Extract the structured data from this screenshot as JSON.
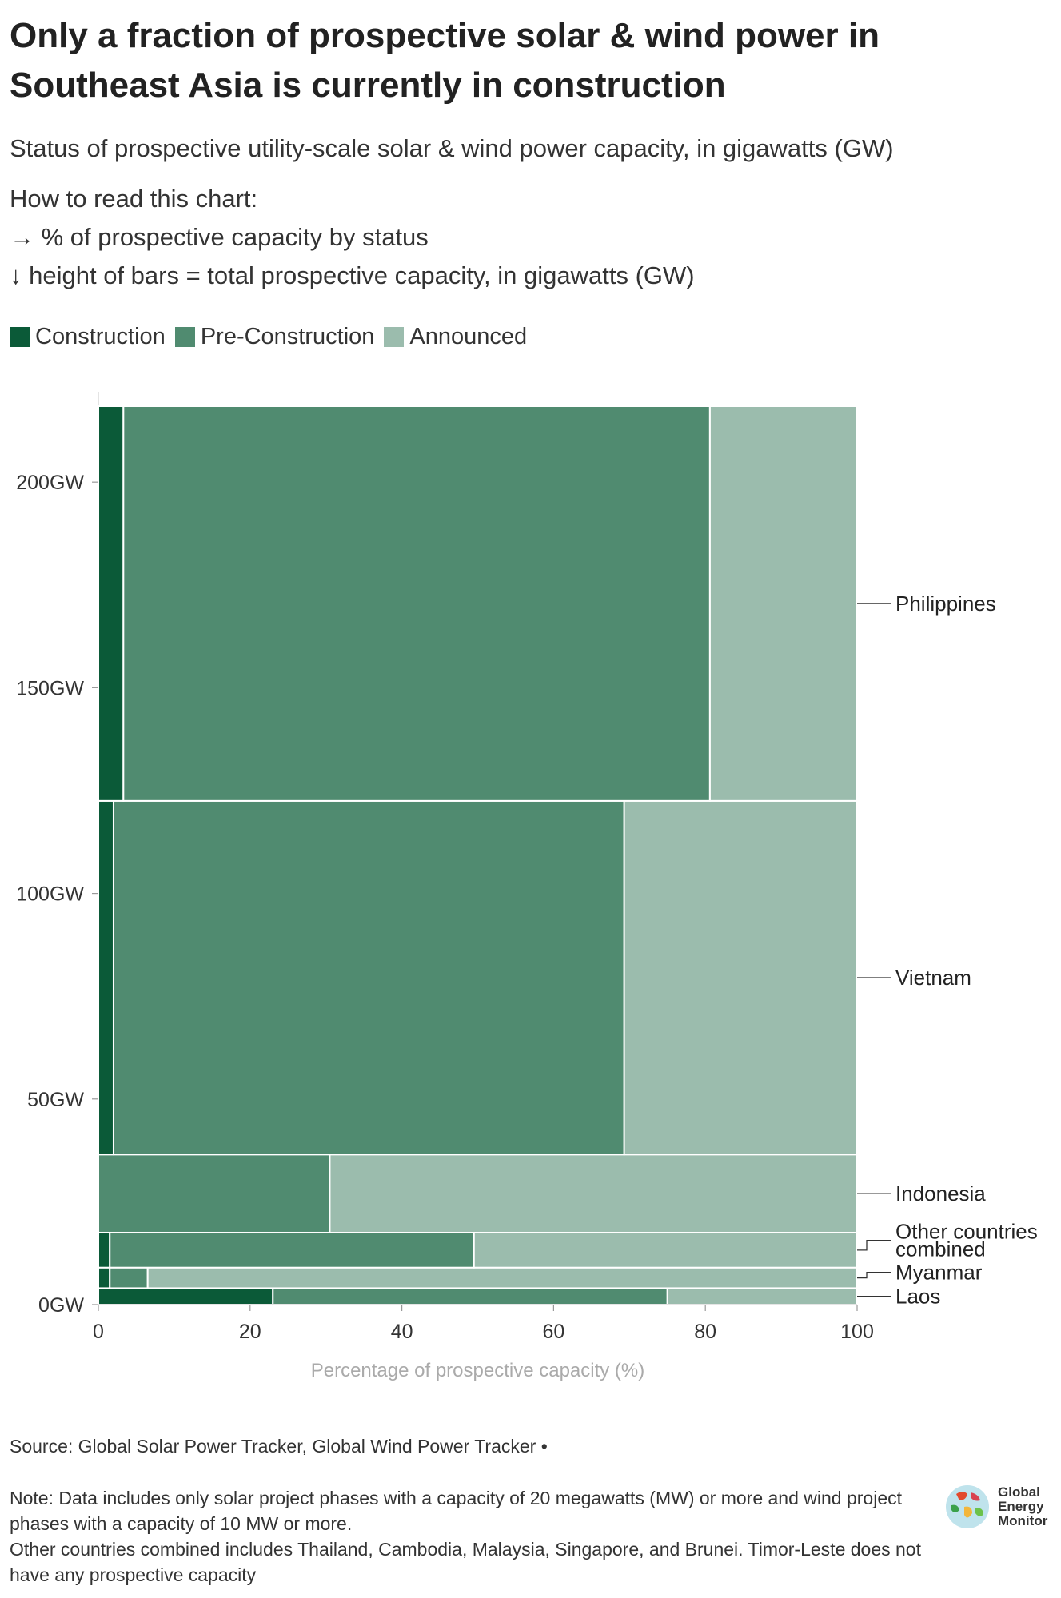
{
  "header": {
    "title": "Only a fraction of prospective solar & wind power in Southeast Asia is currently in construction",
    "subtitle": "Status of prospective utility-scale solar & wind power capacity, in gigawatts (GW)",
    "howto_heading": "How to read this chart:",
    "howto_line1": "→ % of prospective capacity by status",
    "howto_line2": "↓ height of bars = total prospective capacity, in gigawatts (GW)"
  },
  "legend": {
    "construction": "Construction",
    "preconstruction": "Pre-Construction",
    "announced": "Announced"
  },
  "colors": {
    "construction": "#0b5a38",
    "preconstruction": "#508b70",
    "announced": "#9bbcad"
  },
  "chart_data": {
    "type": "bar",
    "subtype": "stacked-percentage-mekko",
    "xlabel": "Percentage of prospective capacity (%)",
    "ylabel": "",
    "xlim": [
      0,
      100
    ],
    "ylim": [
      0,
      222
    ],
    "x_ticks": [
      "0",
      "20",
      "40",
      "60",
      "80",
      "100"
    ],
    "y_ticks": [
      {
        "value": 0,
        "label": "0GW"
      },
      {
        "value": 50,
        "label": "50GW"
      },
      {
        "value": 100,
        "label": "100GW"
      },
      {
        "value": 150,
        "label": "150GW"
      },
      {
        "value": 200,
        "label": "200GW"
      }
    ],
    "series_names": [
      "Construction",
      "Pre-Construction",
      "Announced"
    ],
    "countries": [
      {
        "name": "Laos",
        "capacity_gw": 4,
        "pct": {
          "construction": 23,
          "preconstruction": 52,
          "announced": 25
        }
      },
      {
        "name": "Myanmar",
        "capacity_gw": 5,
        "pct": {
          "construction": 1.5,
          "preconstruction": 5,
          "announced": 93.5
        }
      },
      {
        "name": "Other countries combined",
        "capacity_gw": 8.5,
        "pct": {
          "construction": 1.5,
          "preconstruction": 48,
          "announced": 50.5
        }
      },
      {
        "name": "Indonesia",
        "capacity_gw": 19,
        "pct": {
          "construction": 0,
          "preconstruction": 30.5,
          "announced": 69.5
        }
      },
      {
        "name": "Vietnam",
        "capacity_gw": 86,
        "pct": {
          "construction": 2,
          "preconstruction": 67.3,
          "announced": 30.7
        }
      },
      {
        "name": "Philippines",
        "capacity_gw": 96,
        "pct": {
          "construction": 3.3,
          "preconstruction": 77.3,
          "announced": 19.4
        }
      }
    ]
  },
  "footer": {
    "source": "Source: Global Solar Power Tracker, Global Wind Power Tracker •",
    "note1": "Note: Data includes only solar project phases with a capacity of 20 megawatts (MW) or more and wind project phases with a capacity of 10 MW or more.",
    "note2": "Other countries combined includes Thailand, Cambodia, Malaysia, Singapore, and Brunei. Timor-Leste does not have any prospective capacity",
    "logo_line1": "Global",
    "logo_line2": "Energy",
    "logo_line3": "Monitor"
  }
}
